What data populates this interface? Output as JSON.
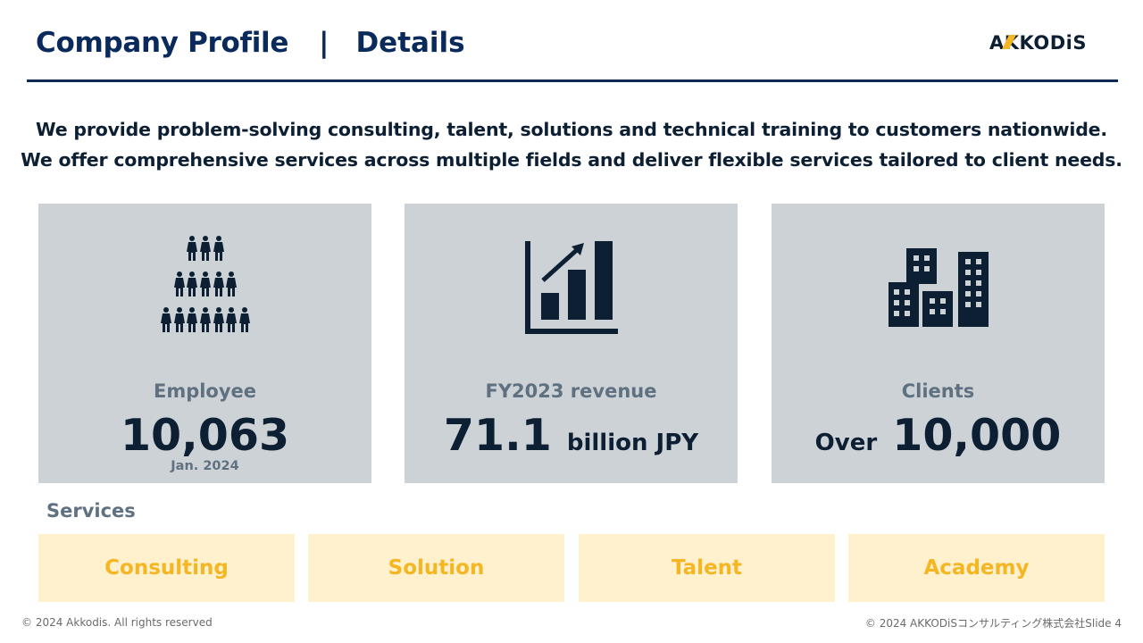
{
  "header": {
    "title": "Company Profile",
    "separator": "|",
    "subtitle": "Details",
    "logo_text": "AKKODiS"
  },
  "intro": {
    "line1": "We provide problem-solving consulting, talent, solutions and technical training to customers nationwide.",
    "line2": "We offer comprehensive services across multiple fields and deliver flexible services tailored to client needs."
  },
  "cards": [
    {
      "icon": "people-group-icon",
      "label": "Employee",
      "value": "10,063",
      "note": "Jan. 2024"
    },
    {
      "icon": "bar-chart-growth-icon",
      "label": "FY2023 revenue",
      "value": "71.1",
      "value_suffix": "billion JPY"
    },
    {
      "icon": "buildings-icon",
      "label": "Clients",
      "value_prefix": "Over",
      "value": "10,000"
    }
  ],
  "services": {
    "label": "Services",
    "items": [
      "Consulting",
      "Solution",
      "Talent",
      "Academy"
    ]
  },
  "footer": {
    "left": "© 2024 Akkodis. All rights reserved",
    "right": "© 2024 AKKODiSコンサルティング株式会社Slide 4"
  },
  "colors": {
    "navy": "#0b2a5c",
    "card_bg": "#cdd2d6",
    "service_bg": "#fff0ce",
    "service_text": "#f5b623"
  }
}
